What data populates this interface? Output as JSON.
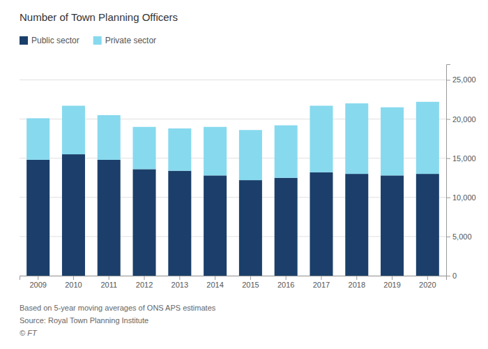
{
  "chart_data": {
    "type": "bar",
    "stacked": true,
    "title": "Number of Town Planning Officers",
    "categories": [
      "2009",
      "2010",
      "2011",
      "2012",
      "2013",
      "2014",
      "2015",
      "2016",
      "2017",
      "2018",
      "2019",
      "2020"
    ],
    "series": [
      {
        "name": "Public sector",
        "color": "#1b3f6a",
        "values": [
          14800,
          15500,
          14800,
          13600,
          13400,
          12800,
          12200,
          12500,
          13200,
          13000,
          12800,
          13000
        ]
      },
      {
        "name": "Private sector",
        "color": "#87d9ee",
        "values": [
          5300,
          6200,
          5700,
          5400,
          5400,
          6200,
          6400,
          6700,
          8500,
          9000,
          8700,
          9200
        ]
      }
    ],
    "ylim": [
      0,
      27000
    ],
    "yticks": [
      0,
      {
        "value": 5000,
        "label": "5,000"
      },
      {
        "value": 10000,
        "label": "10,000"
      },
      {
        "value": 15000,
        "label": "15,000"
      },
      {
        "value": 20000,
        "label": "20,000"
      },
      {
        "value": 25000,
        "label": "25,000"
      }
    ],
    "grid": true,
    "legend": "upper left",
    "annotations": [
      "Based on 5-year moving averages of ONS APS estimates",
      "Source: Royal Town Planning Institute",
      "© FT"
    ]
  }
}
